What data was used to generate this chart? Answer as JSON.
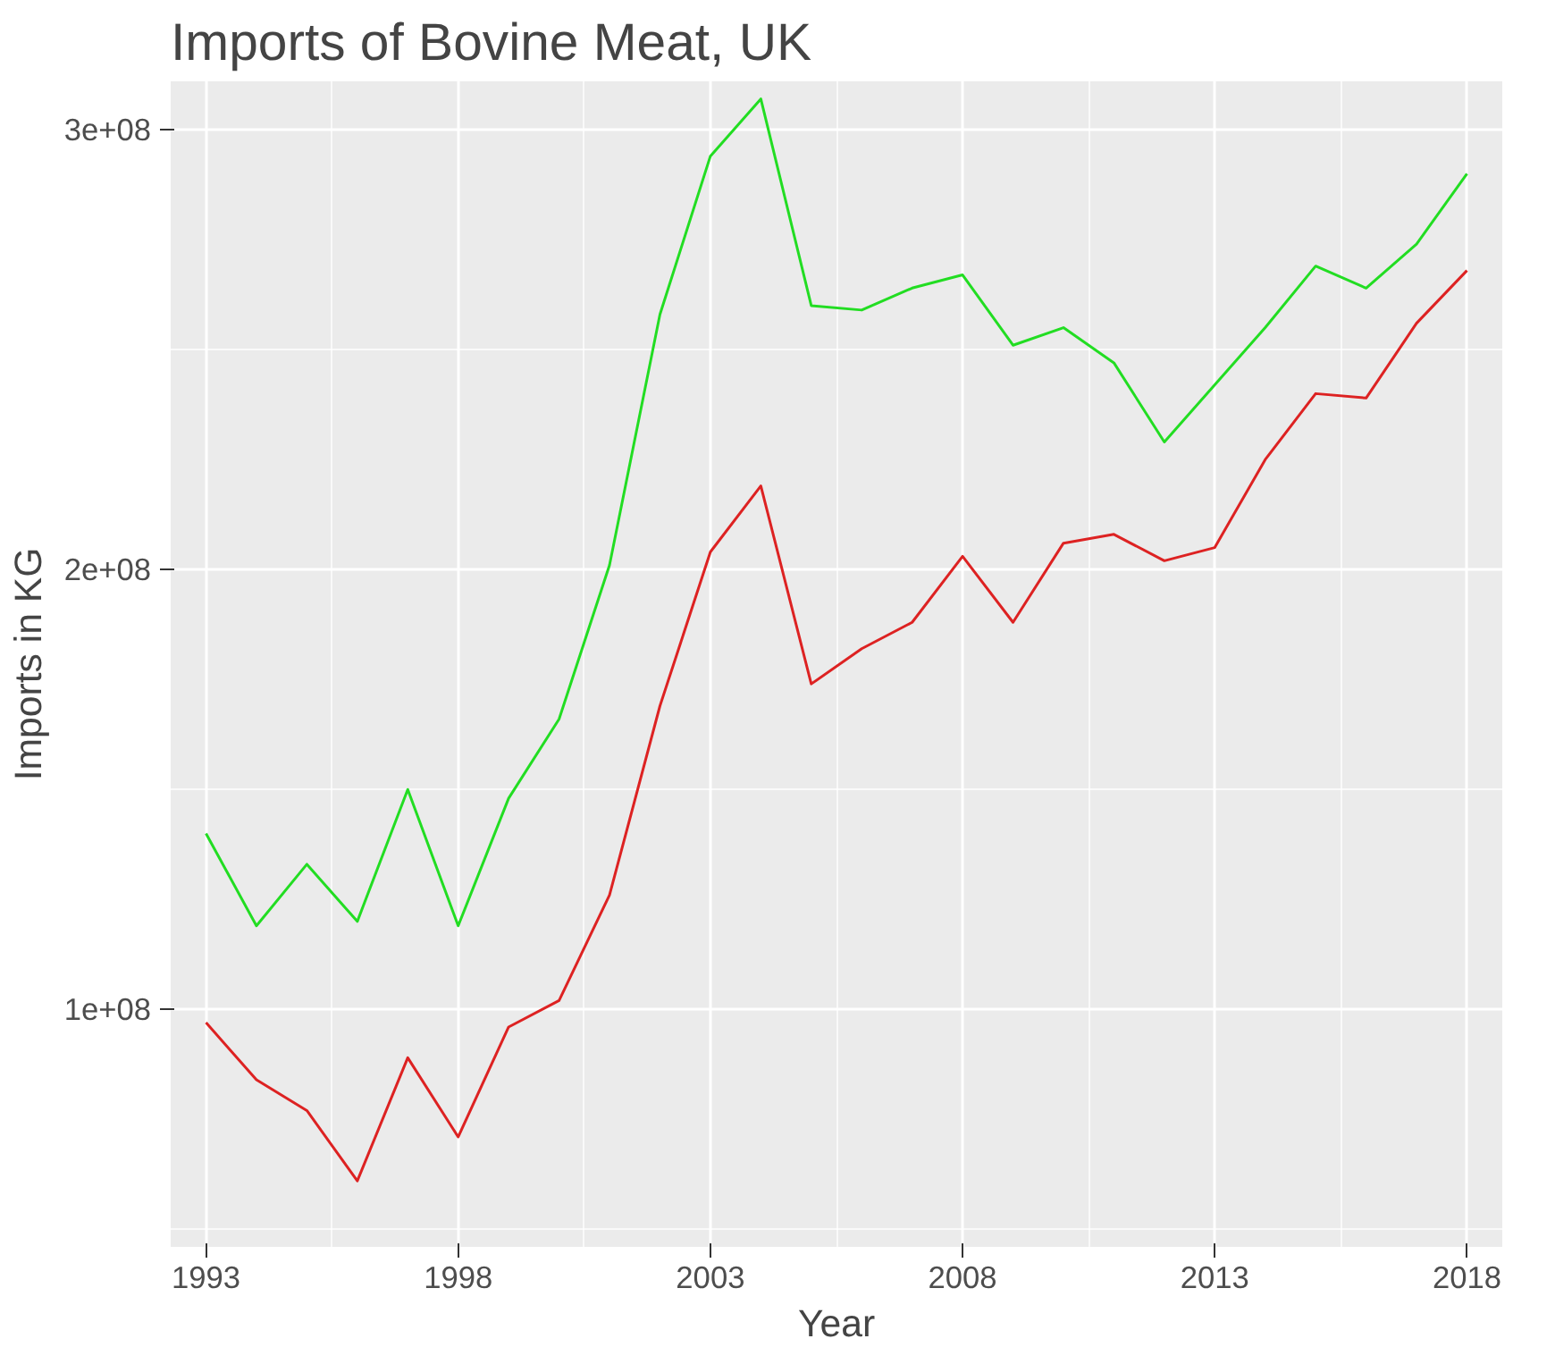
{
  "chart_data": {
    "type": "line",
    "title": "Imports of Bovine Meat, UK",
    "xlabel": "Year",
    "ylabel": "Imports in KG",
    "x": [
      1993,
      1994,
      1995,
      1996,
      1997,
      1998,
      1999,
      2000,
      2001,
      2002,
      2003,
      2004,
      2005,
      2006,
      2007,
      2008,
      2009,
      2010,
      2011,
      2012,
      2013,
      2014,
      2015,
      2016,
      2017,
      2018
    ],
    "series": [
      {
        "color": "#22dd22",
        "values": [
          140000000,
          119000000,
          133000000,
          120000000,
          150000000,
          119000000,
          148000000,
          166000000,
          201000000,
          258000000,
          294000000,
          307000000,
          260000000,
          259000000,
          264000000,
          267000000,
          251000000,
          255000000,
          247000000,
          229000000,
          242000000,
          255000000,
          269000000,
          264000000,
          274000000,
          290000000
        ]
      },
      {
        "color": "#dd2222",
        "values": [
          97000000,
          84000000,
          77000000,
          61000000,
          89000000,
          71000000,
          96000000,
          102000000,
          126000000,
          169000000,
          204000000,
          219000000,
          174000000,
          182000000,
          188000000,
          203000000,
          188000000,
          206000000,
          208000000,
          202000000,
          205000000,
          225000000,
          240000000,
          239000000,
          256000000,
          268000000
        ]
      }
    ],
    "xlim": [
      1992.3,
      2018.7
    ],
    "ylim": [
      46000000,
      311000000
    ],
    "xticks": [
      1993,
      1998,
      2003,
      2008,
      2013,
      2018
    ],
    "yticks": [
      {
        "value": 100000000,
        "label": "1e+08"
      },
      {
        "value": 200000000,
        "label": "2e+08"
      },
      {
        "value": 300000000,
        "label": "3e+08"
      }
    ],
    "grid": true,
    "line_style": "solid",
    "marker": "none"
  }
}
